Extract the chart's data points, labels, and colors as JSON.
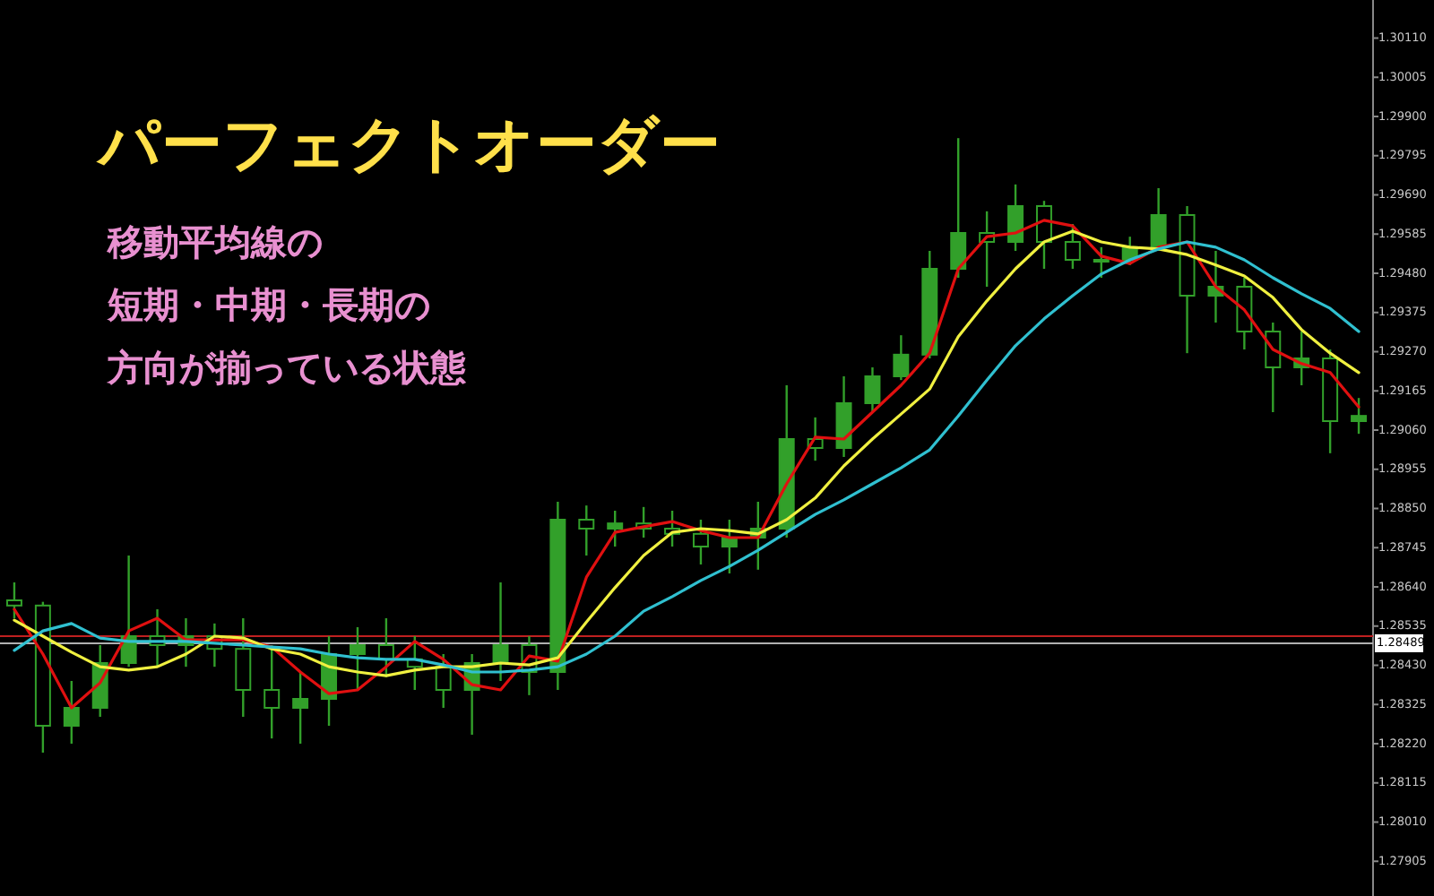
{
  "chart_data": {
    "type": "candlestick",
    "title": "パーフェクトオーダー",
    "annotations": [
      "移動平均線の",
      "短期・中期・長期の",
      "方向が揃っている状態"
    ],
    "categories": [
      null,
      null,
      null,
      null,
      null,
      null,
      null,
      null,
      null,
      null,
      null,
      null,
      null,
      null,
      null,
      null,
      null,
      null,
      null,
      null,
      null,
      null,
      null,
      null,
      null,
      null,
      null,
      null,
      null,
      null,
      null,
      null,
      null,
      null,
      null,
      null,
      null,
      null,
      null,
      null,
      null,
      null,
      null,
      null,
      null,
      null,
      null,
      null
    ],
    "color": "#32a02a",
    "ohlc": [
      [
        1.28604,
        1.28652,
        1.28556,
        1.2859
      ],
      [
        1.2859,
        1.286,
        1.28196,
        1.28268
      ],
      [
        1.28268,
        1.28388,
        1.2822,
        1.28316
      ],
      [
        1.28316,
        1.28484,
        1.28292,
        1.28436
      ],
      [
        1.28436,
        1.28724,
        1.28426,
        1.28508
      ],
      [
        1.28508,
        1.2858,
        1.28426,
        1.28484
      ],
      [
        1.28484,
        1.28556,
        1.28426,
        1.28508
      ],
      [
        1.28508,
        1.28542,
        1.28426,
        1.28474
      ],
      [
        1.28474,
        1.28556,
        1.28292,
        1.28364
      ],
      [
        1.28364,
        1.28484,
        1.28234,
        1.28316
      ],
      [
        1.28316,
        1.28412,
        1.2822,
        1.2834
      ],
      [
        1.2834,
        1.28508,
        1.28268,
        1.2846
      ],
      [
        1.2846,
        1.28532,
        1.28364,
        1.28484
      ],
      [
        1.28484,
        1.28556,
        1.28398,
        1.28446
      ],
      [
        1.28446,
        1.28508,
        1.28364,
        1.28426
      ],
      [
        1.28426,
        1.2846,
        1.28316,
        1.28364
      ],
      [
        1.28364,
        1.2846,
        1.28244,
        1.28436
      ],
      [
        1.28436,
        1.28652,
        1.28388,
        1.28484
      ],
      [
        1.28484,
        1.28508,
        1.2835,
        1.28412
      ],
      [
        1.28412,
        1.28868,
        1.28364,
        1.2882
      ],
      [
        1.2882,
        1.28858,
        1.28724,
        1.28796
      ],
      [
        1.28796,
        1.28844,
        1.28748,
        1.2881
      ],
      [
        1.2881,
        1.28854,
        1.28772,
        1.28796
      ],
      [
        1.28796,
        1.28844,
        1.28748,
        1.28782
      ],
      [
        1.28782,
        1.2882,
        1.287,
        1.28748
      ],
      [
        1.28748,
        1.2882,
        1.28676,
        1.28772
      ],
      [
        1.28772,
        1.28868,
        1.28686,
        1.28796
      ],
      [
        1.28796,
        1.2918,
        1.28772,
        1.29036
      ],
      [
        1.29036,
        1.29094,
        1.28978,
        1.29012
      ],
      [
        1.29012,
        1.29204,
        1.28988,
        1.29132
      ],
      [
        1.29132,
        1.29228,
        1.29108,
        1.29204
      ],
      [
        1.29204,
        1.29314,
        1.29194,
        1.29262
      ],
      [
        1.29262,
        1.2954,
        1.29252,
        1.29492
      ],
      [
        1.29492,
        1.29842,
        1.29468,
        1.29588
      ],
      [
        1.29588,
        1.29646,
        1.29444,
        1.29564
      ],
      [
        1.29564,
        1.29718,
        1.2954,
        1.2966
      ],
      [
        1.2966,
        1.29674,
        1.29492,
        1.29564
      ],
      [
        1.29564,
        1.29612,
        1.29492,
        1.29516
      ],
      [
        1.29516,
        1.2955,
        1.29468,
        1.29516
      ],
      [
        1.29516,
        1.29578,
        1.29502,
        1.2955
      ],
      [
        1.2955,
        1.29708,
        1.2954,
        1.29636
      ],
      [
        1.29636,
        1.2966,
        1.29266,
        1.2942
      ],
      [
        1.2942,
        1.2954,
        1.29348,
        1.29444
      ],
      [
        1.29444,
        1.29468,
        1.29276,
        1.29324
      ],
      [
        1.29324,
        1.29348,
        1.29108,
        1.29228
      ],
      [
        1.29228,
        1.29324,
        1.2918,
        1.29252
      ],
      [
        1.29252,
        1.29276,
        1.28998,
        1.29084
      ],
      [
        1.29084,
        1.29146,
        1.2905,
        1.29098
      ]
    ],
    "series": [
      {
        "type": "line",
        "color": "#e01010",
        "values": [
          1.2858,
          1.2846,
          1.28316,
          1.28383,
          1.28522,
          1.28556,
          1.28498,
          1.28498,
          1.28498,
          1.28479,
          1.28412,
          1.28354,
          1.28364,
          1.28426,
          1.28494,
          1.28446,
          1.28378,
          1.28364,
          1.28455,
          1.28441,
          1.28666,
          1.28786,
          1.28801,
          1.28815,
          1.28791,
          1.28772,
          1.28772,
          1.28916,
          1.29041,
          1.29036,
          1.29108,
          1.2918,
          1.29266,
          1.29492,
          1.29578,
          1.29588,
          1.29622,
          1.29607,
          1.29526,
          1.29506,
          1.2955,
          1.29564,
          1.29444,
          1.29382,
          1.29276,
          1.29238,
          1.29214,
          1.29122
        ]
      },
      {
        "type": "line",
        "color": "#f0f040",
        "values": [
          1.28551,
          1.28508,
          1.28465,
          1.28426,
          1.28417,
          1.28426,
          1.2846,
          1.28508,
          1.28503,
          1.28474,
          1.2846,
          1.28426,
          1.28412,
          1.28402,
          1.28417,
          1.28426,
          1.28426,
          1.28436,
          1.28431,
          1.2845,
          1.28546,
          1.28638,
          1.28724,
          1.28786,
          1.28796,
          1.28791,
          1.28782,
          1.2882,
          1.28878,
          1.28964,
          1.29036,
          1.29103,
          1.2917,
          1.2931,
          1.29406,
          1.29492,
          1.29564,
          1.29593,
          1.29564,
          1.2955,
          1.29545,
          1.2953,
          1.29502,
          1.29473,
          1.29415,
          1.29329,
          1.29266,
          1.29214
        ]
      },
      {
        "type": "line",
        "color": "#30c0d0",
        "values": [
          1.2847,
          1.28522,
          1.28542,
          1.28503,
          1.28494,
          1.28494,
          1.28494,
          1.28489,
          1.28484,
          1.28479,
          1.28474,
          1.2846,
          1.2845,
          1.28446,
          1.28446,
          1.28431,
          1.28412,
          1.28412,
          1.28417,
          1.28426,
          1.2846,
          1.28508,
          1.28575,
          1.28614,
          1.28657,
          1.28695,
          1.28738,
          1.28786,
          1.28834,
          1.28873,
          1.28916,
          1.28959,
          1.29007,
          1.29098,
          1.29194,
          1.29286,
          1.29358,
          1.2942,
          1.29478,
          1.29516,
          1.29545,
          1.29564,
          1.2955,
          1.29516,
          1.29468,
          1.29425,
          1.29386,
          1.29324
        ]
      }
    ],
    "ylim": [
      1.27812,
      1.30212
    ],
    "yticks": [
      {
        "value": 1.3011,
        "label": "1.30110"
      },
      {
        "value": 1.30005,
        "label": "1.30005"
      },
      {
        "value": 1.299,
        "label": "1.29900"
      },
      {
        "value": 1.29795,
        "label": "1.29795"
      },
      {
        "value": 1.2969,
        "label": "1.29690"
      },
      {
        "value": 1.29585,
        "label": "1.29585"
      },
      {
        "value": 1.2948,
        "label": "1.29480"
      },
      {
        "value": 1.29375,
        "label": "1.29375"
      },
      {
        "value": 1.2927,
        "label": "1.29270"
      },
      {
        "value": 1.29165,
        "label": "1.29165"
      },
      {
        "value": 1.2906,
        "label": "1.29060"
      },
      {
        "value": 1.28955,
        "label": "1.28955"
      },
      {
        "value": 1.2885,
        "label": "1.28850"
      },
      {
        "value": 1.28745,
        "label": "1.28745"
      },
      {
        "value": 1.2864,
        "label": "1.28640"
      },
      {
        "value": 1.28535,
        "label": "1.28535"
      },
      {
        "value": 1.2843,
        "label": "1.28430"
      },
      {
        "value": 1.28325,
        "label": "1.28325"
      },
      {
        "value": 1.2822,
        "label": "1.28220"
      },
      {
        "value": 1.28115,
        "label": "1.28115"
      },
      {
        "value": 1.2801,
        "label": "1.28010"
      },
      {
        "value": 1.27905,
        "label": "1.27905"
      }
    ],
    "tick_labels": "y",
    "ref_lines": [
      {
        "axis": "y",
        "value": 1.28508,
        "color": "#c02020",
        "line_style": "solid"
      },
      {
        "axis": "y",
        "value": 1.28489,
        "label": "1.28489",
        "color": "#b0b0b0",
        "line_style": "solid"
      }
    ]
  }
}
